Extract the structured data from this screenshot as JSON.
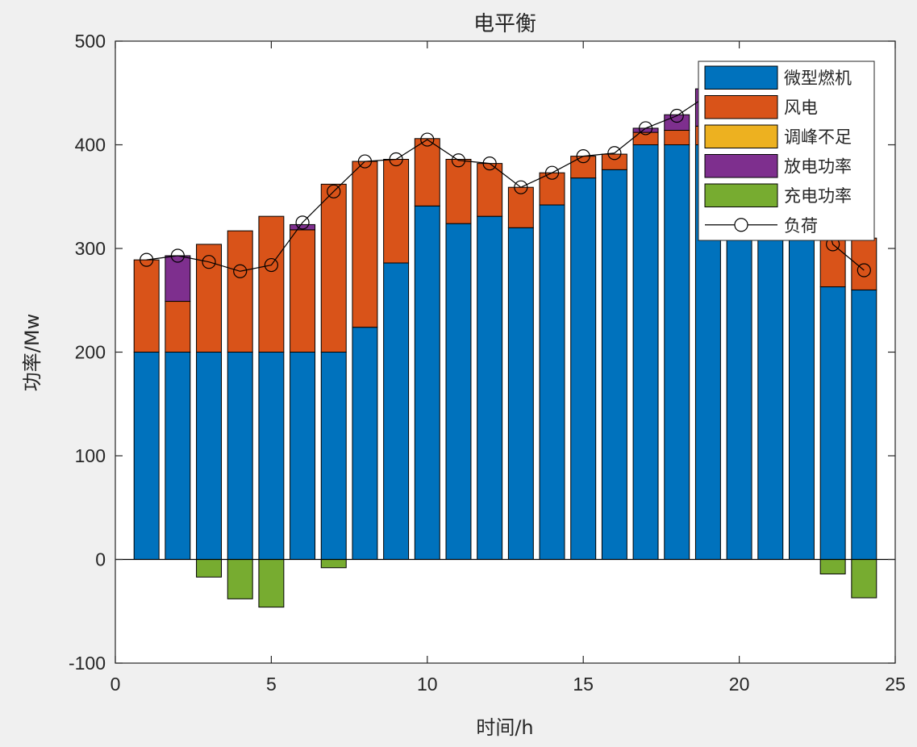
{
  "chart_data": {
    "type": "bar",
    "stacked": true,
    "title": "电平衡",
    "xlabel": "时间/h",
    "ylabel": "功率/Mw",
    "xlim": [
      0,
      25
    ],
    "ylim": [
      -100,
      500
    ],
    "xticks": [
      0,
      5,
      10,
      15,
      20,
      25
    ],
    "yticks": [
      -100,
      0,
      100,
      200,
      300,
      400,
      500
    ],
    "grid": false,
    "legend_position": "top-right",
    "x": [
      1,
      2,
      3,
      4,
      5,
      6,
      7,
      8,
      9,
      10,
      11,
      12,
      13,
      14,
      15,
      16,
      17,
      18,
      19,
      20,
      21,
      22,
      23,
      24
    ],
    "series": [
      {
        "name": "微型燃机",
        "color": "#0072BD",
        "values": [
          200,
          200,
          200,
          200,
          200,
          200,
          200,
          224,
          286,
          341,
          324,
          331,
          320,
          342,
          368,
          376,
          400,
          400,
          400,
          400,
          400,
          400,
          263,
          260
        ]
      },
      {
        "name": "风电",
        "color": "#D95319",
        "values": [
          89,
          49,
          104,
          117,
          131,
          118,
          162,
          160,
          100,
          65,
          62,
          51,
          39,
          31,
          21,
          15,
          12,
          14,
          18,
          20,
          20,
          10,
          55,
          50
        ]
      },
      {
        "name": "调峰不足",
        "color": "#EDB120",
        "values": [
          0,
          0,
          0,
          0,
          0,
          0,
          0,
          0,
          0,
          0,
          0,
          0,
          0,
          0,
          0,
          0,
          0,
          0,
          0,
          0,
          0,
          0,
          0,
          0
        ]
      },
      {
        "name": "放电功率",
        "color": "#7E2F8E",
        "values": [
          0,
          44,
          0,
          0,
          0,
          5,
          0,
          0,
          0,
          0,
          0,
          0,
          0,
          0,
          0,
          0,
          4,
          15,
          36,
          30,
          10,
          0,
          0,
          0
        ]
      },
      {
        "name": "充电功率",
        "color": "#77AC30",
        "values": [
          0,
          0,
          -17,
          -38,
          -46,
          0,
          -8,
          0,
          0,
          0,
          0,
          0,
          0,
          0,
          0,
          0,
          0,
          0,
          0,
          0,
          0,
          0,
          -14,
          -37
        ]
      }
    ],
    "load": {
      "name": "负荷",
      "values": [
        289,
        293,
        287,
        278,
        284,
        325,
        355,
        384,
        386,
        405,
        385,
        382,
        359,
        373,
        389,
        392,
        416,
        428,
        448,
        440,
        425,
        410,
        304,
        279
      ]
    }
  }
}
